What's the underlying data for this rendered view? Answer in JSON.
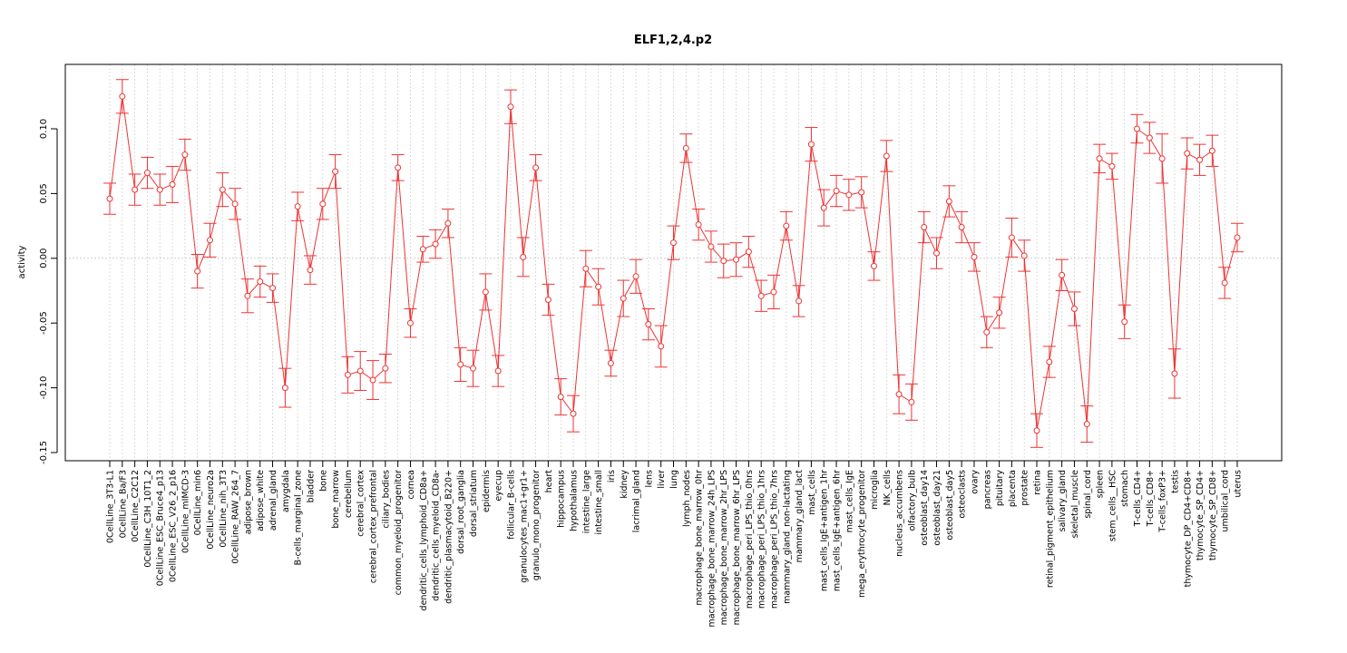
{
  "chart_data": {
    "type": "line",
    "title": "ELF1,2,4.p2",
    "xlabel": "",
    "ylabel": "activity",
    "ylim": [
      -0.155,
      0.148
    ],
    "yticks": [
      -0.15,
      -0.1,
      -0.05,
      0.0,
      0.05,
      0.1
    ],
    "ytick_labels": [
      "-0.15",
      "-0.10",
      "-0.05",
      "0.00",
      "0.05",
      "0.10"
    ],
    "grid": true,
    "color": "#ee3333",
    "error_bars": true,
    "categories": [
      "0CellLine_3T3-L1",
      "0CellLine_Ba/F3",
      "0CellLine_C2C12",
      "0CellLine_C3H_10T1_2",
      "0CellLine_ESC_Bruce4_p13",
      "0CellLine_ESC_V26_2_p16",
      "0CellLine_mIMCD-3",
      "0CellLine_min6",
      "0CellLine_neuro2a",
      "0CellLine_nih_3T3",
      "0CellLine_RAW_264_7",
      "adipose_brown",
      "adipose_white",
      "adrenal_gland",
      "amygdala",
      "B-cells_marginal_zone",
      "bladder",
      "bone",
      "bone_marrow",
      "cerebellum",
      "cerebral_cortex",
      "cerebral_cortex_prefrontal",
      "ciliary_bodies",
      "common_myeloid_progenitor",
      "cornea",
      "dendritic_cells_lymphoid_CD8a+",
      "dendritic_cells_myeloid_CD8a-",
      "dendritic_plasmacytoid_B220+",
      "dorsal_root_ganglia",
      "dorsal_striatum",
      "epidermis",
      "eyecup",
      "follicular_B-cells",
      "granulocytes_mac1+gr1+",
      "granulo_mono_progenitor",
      "heart",
      "hippocampus",
      "hypothalamus",
      "intestine_large",
      "intestine_small",
      "iris",
      "kidney",
      "lacrimal_gland",
      "lens",
      "liver",
      "lung",
      "lymph_nodes",
      "macrophage_bone_marrow_0hr",
      "macrophage_bone_marrow_24h_LPS",
      "macrophage_bone_marrow_2hr_LPS",
      "macrophage_bone_marrow_6hr_LPS",
      "macrophage_peri_LPS_thio_0hrs",
      "macrophage_peri_LPS_thio_1hrs",
      "macrophage_peri_LPS_thio_7hrs",
      "mammary_gland_non-lactating",
      "mammary_gland_lact",
      "mast_cells",
      "mast_cells_IgE+antigen_1hr",
      "mast_cells_IgE+antigen_6hr",
      "mast_cells_IgE",
      "mega_erythrocyte_progenitor",
      "microglia",
      "NK_cells",
      "nucleus_accumbens",
      "olfactory_bulb",
      "osteoblast_day14",
      "osteoblast_day21",
      "osteoblast_day5",
      "osteoclasts",
      "ovary",
      "pancreas",
      "pituitary",
      "placenta",
      "prostate",
      "retina",
      "retinal_pigment_epithelium",
      "salivary_gland",
      "skeletal_muscle",
      "spinal_cord",
      "spleen",
      "stem_cells__HSC",
      "stomach",
      "T-cells_CD4+",
      "T-cells_CD8+",
      "T-cells_foxP3+",
      "testis",
      "thymocyte_DP_CD4+CD8+",
      "thymocyte_SP_CD4+",
      "thymocyte_SP_CD8+",
      "umbilical_cord",
      "uterus"
    ],
    "series": [
      {
        "values": [
          0.046,
          0.125,
          0.053,
          0.066,
          0.053,
          0.057,
          0.08,
          -0.01,
          0.014,
          0.053,
          0.042,
          -0.029,
          -0.018,
          -0.023,
          -0.1,
          0.04,
          -0.009,
          0.042,
          0.067,
          -0.09,
          -0.087,
          -0.094,
          -0.085,
          0.07,
          -0.05,
          0.007,
          0.011,
          0.027,
          -0.082,
          -0.085,
          -0.026,
          -0.087,
          0.117,
          0.001,
          0.07,
          -0.032,
          -0.107,
          -0.12,
          -0.008,
          -0.022,
          -0.081,
          -0.031,
          -0.014,
          -0.051,
          -0.068,
          0.012,
          0.085,
          0.026,
          0.009,
          -0.002,
          -0.001,
          0.005,
          -0.029,
          -0.026,
          0.025,
          -0.033,
          0.088,
          0.039,
          0.052,
          0.049,
          0.051,
          -0.006,
          0.079,
          -0.105,
          -0.111,
          0.024,
          0.004,
          0.044,
          0.024,
          0.001,
          -0.057,
          -0.042,
          0.016,
          0.002,
          -0.133,
          -0.08,
          -0.013,
          -0.039,
          -0.128,
          0.077,
          0.071,
          -0.049,
          0.1,
          0.093,
          0.077,
          -0.089,
          0.081,
          0.076,
          0.083,
          -0.019,
          0.016
        ],
        "errors": [
          0.012,
          0.013,
          0.012,
          0.012,
          0.012,
          0.014,
          0.012,
          0.013,
          0.013,
          0.013,
          0.012,
          0.013,
          0.012,
          0.011,
          0.015,
          0.011,
          0.011,
          0.012,
          0.013,
          0.014,
          0.015,
          0.015,
          0.011,
          0.01,
          0.011,
          0.01,
          0.011,
          0.011,
          0.013,
          0.014,
          0.014,
          0.012,
          0.013,
          0.015,
          0.01,
          0.012,
          0.014,
          0.014,
          0.014,
          0.014,
          0.01,
          0.014,
          0.013,
          0.012,
          0.016,
          0.013,
          0.011,
          0.012,
          0.012,
          0.013,
          0.013,
          0.012,
          0.012,
          0.013,
          0.011,
          0.012,
          0.013,
          0.014,
          0.012,
          0.012,
          0.012,
          0.011,
          0.012,
          0.015,
          0.014,
          0.012,
          0.012,
          0.012,
          0.012,
          0.011,
          0.012,
          0.012,
          0.015,
          0.012,
          0.013,
          0.012,
          0.012,
          0.013,
          0.014,
          0.011,
          0.01,
          0.013,
          0.011,
          0.012,
          0.019,
          0.019,
          0.012,
          0.012,
          0.012,
          0.012,
          0.011
        ]
      }
    ]
  }
}
